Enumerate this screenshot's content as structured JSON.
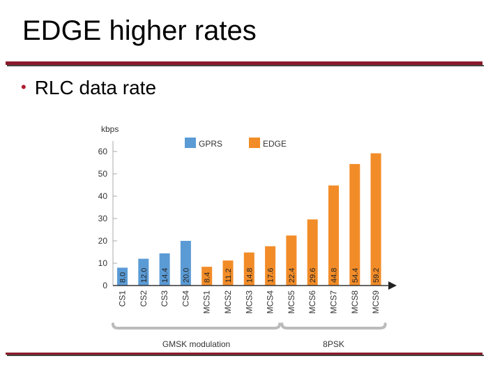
{
  "slide": {
    "title": "EDGE higher rates",
    "bullet": "RLC data rate"
  },
  "chart_data": {
    "type": "bar",
    "ylabel": "kbps",
    "ylim": [
      0,
      60
    ],
    "yticks": [
      0,
      10,
      20,
      30,
      40,
      50,
      60
    ],
    "categories": [
      "CS1",
      "CS2",
      "CS3",
      "CS4",
      "MCS1",
      "MCS2",
      "MCS3",
      "MCS4",
      "MCS5",
      "MCS6",
      "MCS7",
      "MCS8",
      "MCS9"
    ],
    "values": [
      8.0,
      12.0,
      14.4,
      20.0,
      8.4,
      11.2,
      14.8,
      17.6,
      22.4,
      29.6,
      44.8,
      54.4,
      59.2
    ],
    "value_labels": [
      "8.0",
      "12.0",
      "14.4",
      "20.0",
      "8.4",
      "11.2",
      "14.8",
      "17.6",
      "22.4",
      "29.6",
      "44.8",
      "54.4",
      "59.2"
    ],
    "series_of": [
      "GPRS",
      "GPRS",
      "GPRS",
      "GPRS",
      "EDGE",
      "EDGE",
      "EDGE",
      "EDGE",
      "EDGE",
      "EDGE",
      "EDGE",
      "EDGE",
      "EDGE"
    ],
    "legend": [
      {
        "name": "GPRS",
        "color": "#5b9bd5"
      },
      {
        "name": "EDGE",
        "color": "#f28c28"
      }
    ],
    "groups": [
      {
        "label": "GMSK modulation",
        "from": 0,
        "to": 7
      },
      {
        "label": "8PSK",
        "from": 8,
        "to": 12
      }
    ]
  }
}
